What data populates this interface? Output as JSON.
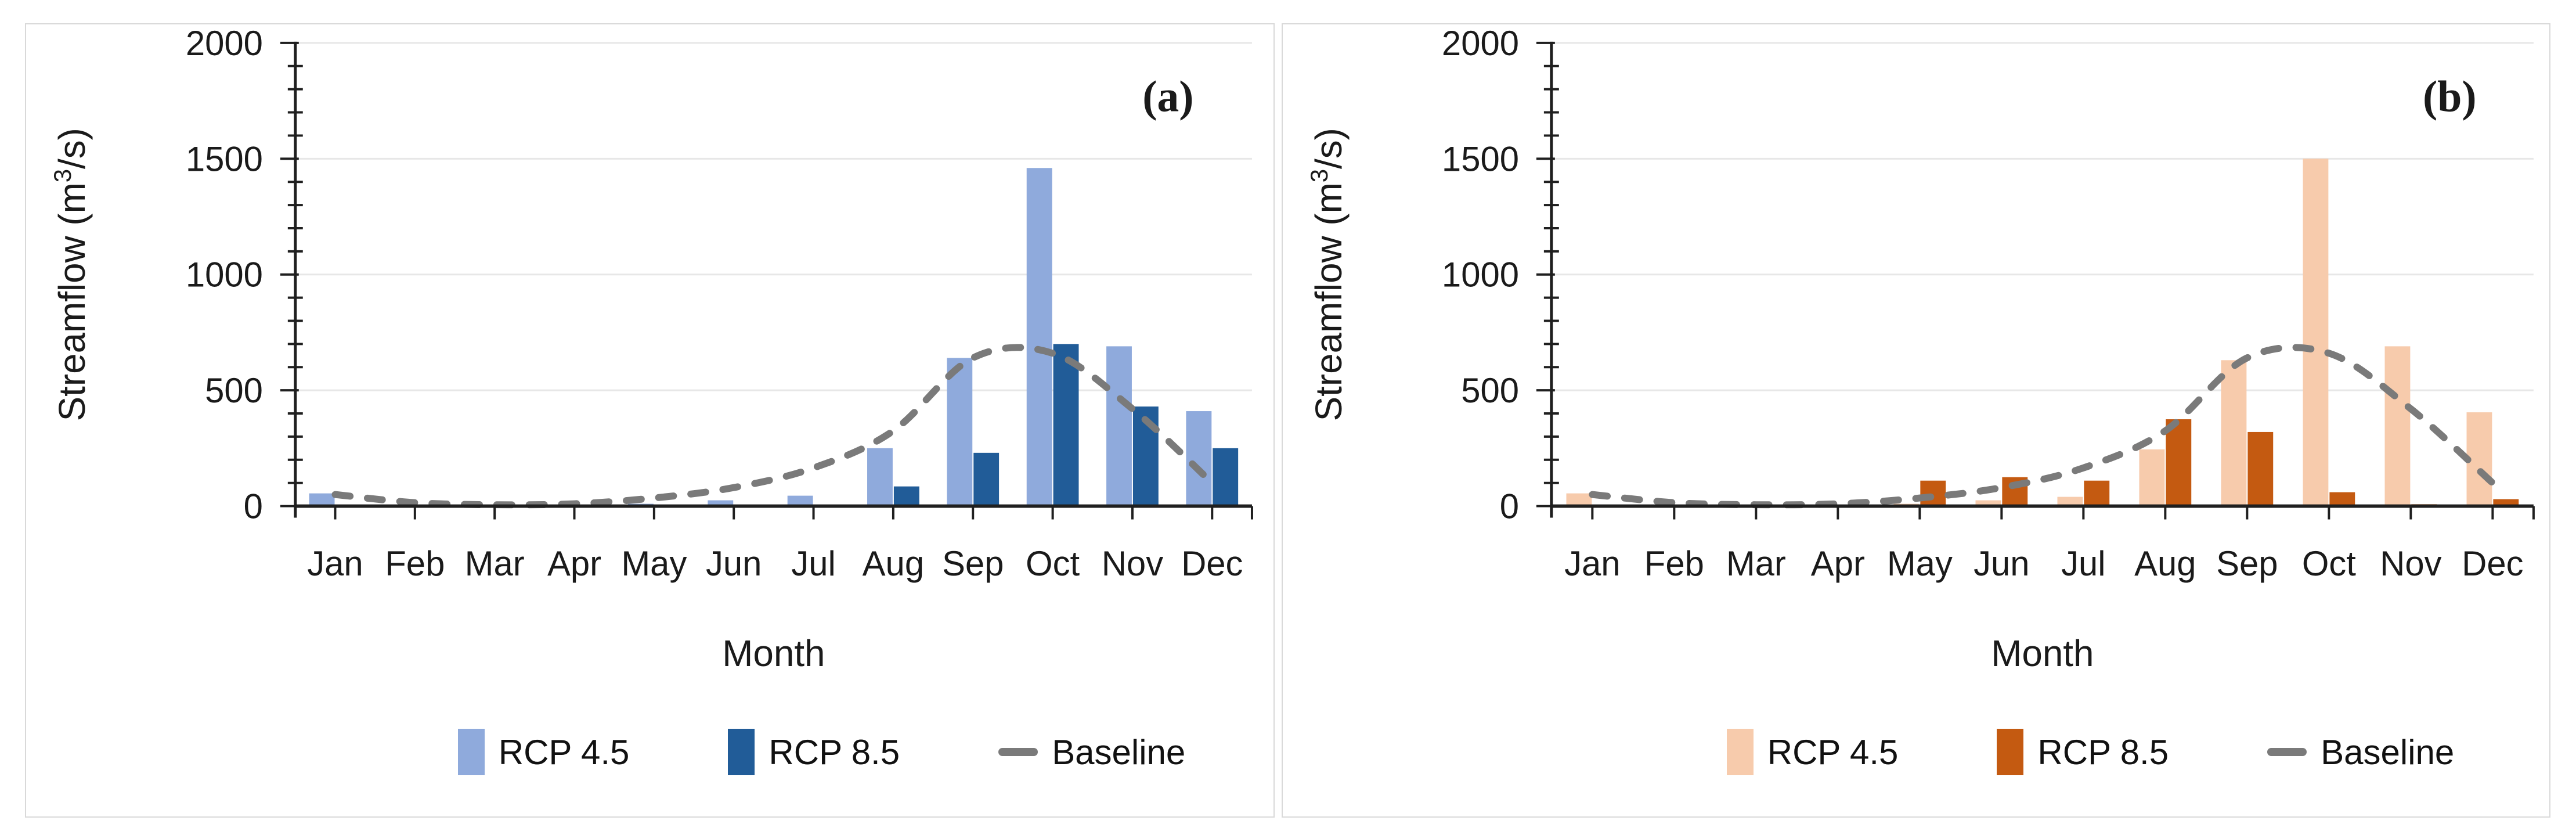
{
  "figure": {
    "background": "#ffffff",
    "panel_border_color": "#d9d9d9",
    "axis_color": "#1f1f1f",
    "gridline_color": "#e7e7e7",
    "text_color": "#1a1a1a"
  },
  "chart_data": [
    {
      "type": "bar",
      "panel_label": "(a)",
      "xlabel": "Month",
      "ylabel": "Streamflow (m³/s)",
      "ylim": [
        0,
        2000
      ],
      "y_major_step": 500,
      "y_minor_step": 100,
      "y_tick_labels": [
        "0",
        "500",
        "1000",
        "1500",
        "2000"
      ],
      "grid": true,
      "legend_position": "bottom",
      "categories": [
        "Jan",
        "Feb",
        "Mar",
        "Apr",
        "May",
        "Jun",
        "Jul",
        "Aug",
        "Sep",
        "Oct",
        "Nov",
        "Dec"
      ],
      "series": [
        {
          "name": "RCP 4.5",
          "type": "bar",
          "color": "#8FAADC",
          "values": [
            55,
            0,
            0,
            0,
            10,
            25,
            45,
            250,
            640,
            1460,
            690,
            410
          ]
        },
        {
          "name": "RCP 8.5",
          "type": "bar",
          "color": "#215C98",
          "values": [
            0,
            0,
            0,
            0,
            0,
            0,
            0,
            85,
            230,
            700,
            430,
            250
          ]
        },
        {
          "name": "Baseline",
          "type": "line",
          "line_style": "dashed",
          "color": "#7A7A7A",
          "values": [
            50,
            15,
            6,
            10,
            35,
            80,
            165,
            325,
            640,
            660,
            420,
            100
          ]
        }
      ]
    },
    {
      "type": "bar",
      "panel_label": "(b)",
      "xlabel": "Month",
      "ylabel": "Streamflow (m³/s)",
      "ylim": [
        0,
        2000
      ],
      "y_major_step": 500,
      "y_minor_step": 100,
      "y_tick_labels": [
        "0",
        "500",
        "1000",
        "1500",
        "2000"
      ],
      "grid": true,
      "legend_position": "bottom",
      "categories": [
        "Jan",
        "Feb",
        "Mar",
        "Apr",
        "May",
        "Jun",
        "Jul",
        "Aug",
        "Sep",
        "Oct",
        "Nov",
        "Dec"
      ],
      "series": [
        {
          "name": "RCP 4.5",
          "type": "bar",
          "color": "#F7CBAC",
          "values": [
            55,
            0,
            0,
            0,
            10,
            25,
            40,
            245,
            630,
            1500,
            690,
            405
          ]
        },
        {
          "name": "RCP 8.5",
          "type": "bar",
          "color": "#C45A11",
          "values": [
            0,
            0,
            0,
            0,
            110,
            125,
            110,
            375,
            320,
            60,
            8,
            30
          ]
        },
        {
          "name": "Baseline",
          "type": "line",
          "line_style": "dashed",
          "color": "#7A7A7A",
          "values": [
            50,
            15,
            6,
            10,
            35,
            80,
            165,
            325,
            640,
            660,
            420,
            100
          ]
        }
      ]
    }
  ]
}
